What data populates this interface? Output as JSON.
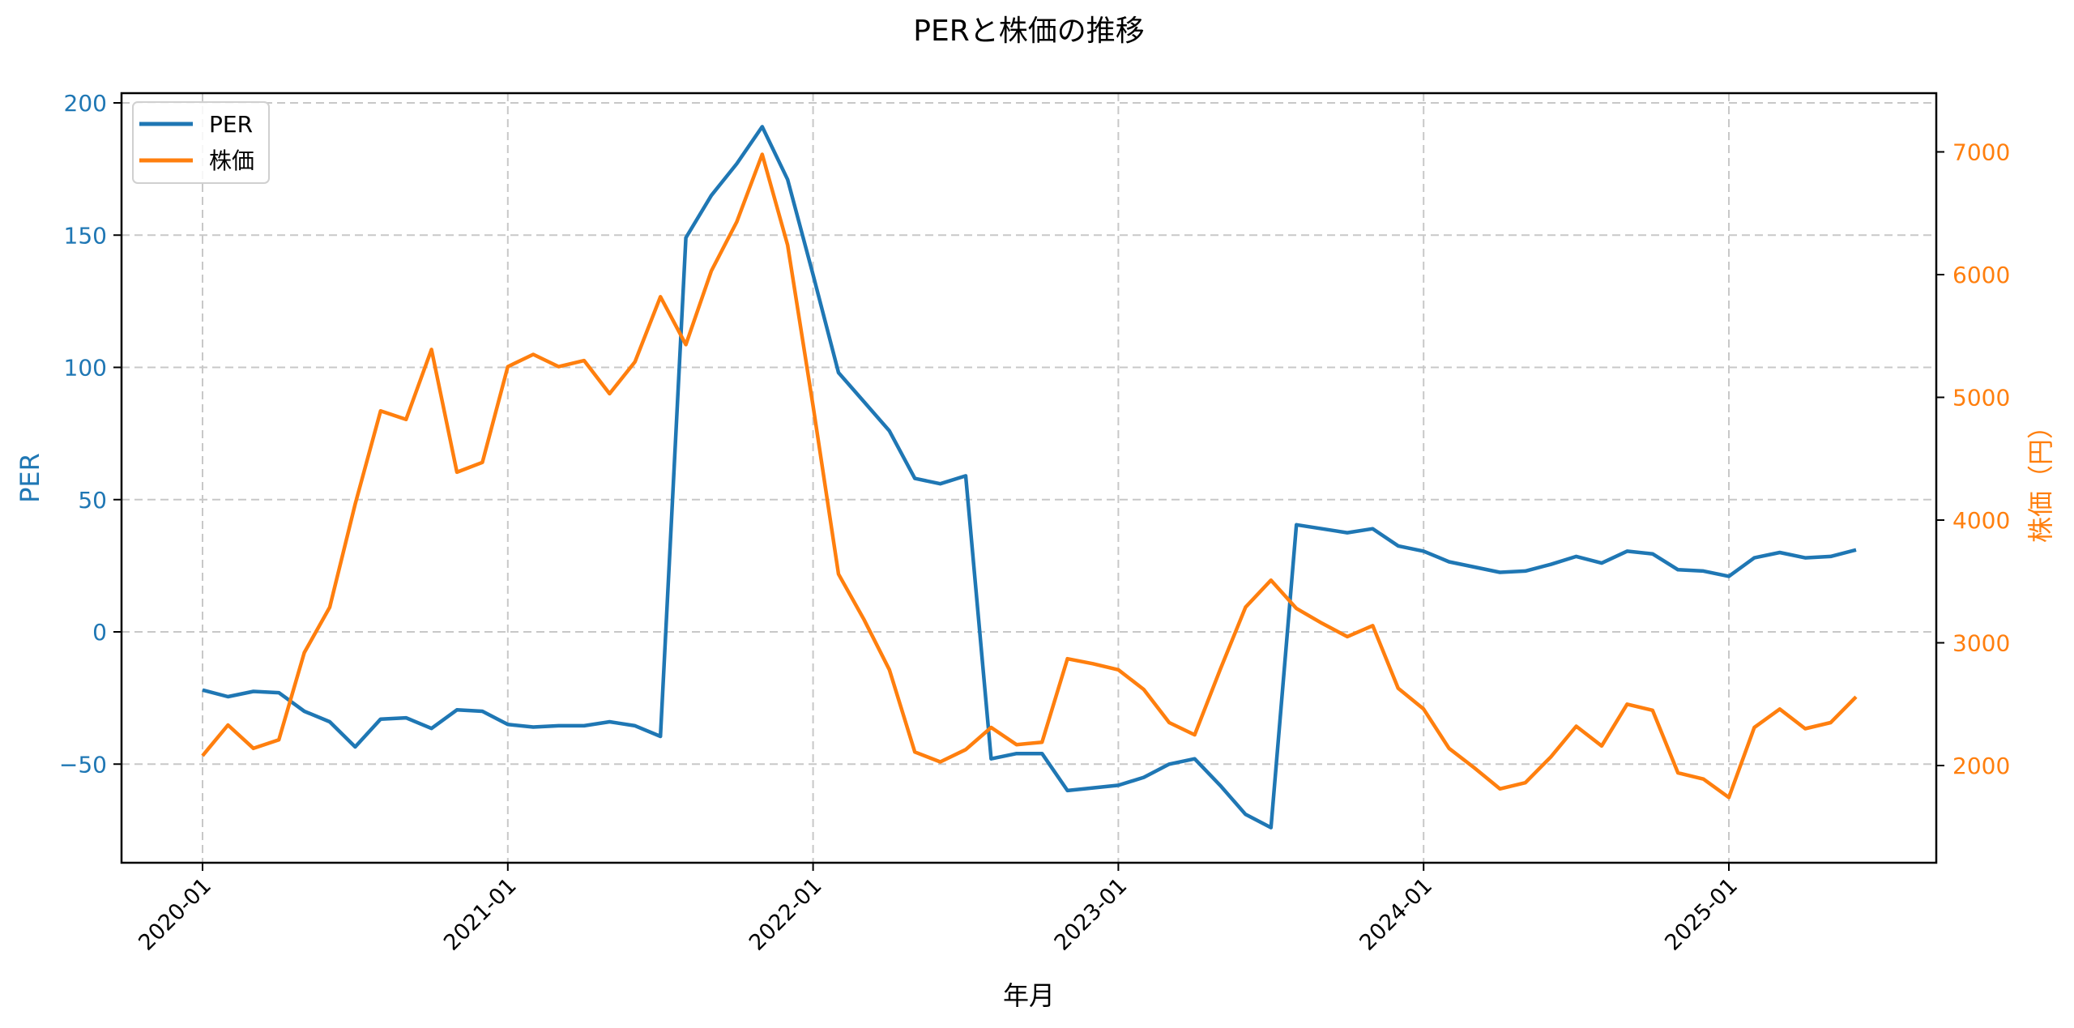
{
  "chart_data": {
    "type": "line",
    "title": "PERと株価の推移",
    "xlabel": "年月",
    "ylabel_left": "PER",
    "ylabel_right": "株価（円）",
    "x_ticks": [
      "2020-01",
      "2021-01",
      "2022-01",
      "2023-01",
      "2024-01",
      "2025-01"
    ],
    "y_left_ticks": [
      -50,
      0,
      50,
      100,
      150,
      200
    ],
    "y_right_ticks": [
      2000,
      3000,
      4000,
      5000,
      6000,
      7000
    ],
    "ylim_left": [
      -88,
      204
    ],
    "ylim_right": [
      1250,
      7460
    ],
    "grid": true,
    "legend_position": "upper left",
    "x": [
      "2020-01",
      "2020-02",
      "2020-03",
      "2020-04",
      "2020-05",
      "2020-06",
      "2020-07",
      "2020-08",
      "2020-09",
      "2020-10",
      "2020-11",
      "2020-12",
      "2021-01",
      "2021-02",
      "2021-03",
      "2021-04",
      "2021-05",
      "2021-06",
      "2021-07",
      "2021-08",
      "2021-09",
      "2021-10",
      "2021-11",
      "2021-12",
      "2022-01",
      "2022-02",
      "2022-03",
      "2022-04",
      "2022-05",
      "2022-06",
      "2022-07",
      "2022-08",
      "2022-09",
      "2022-10",
      "2022-11",
      "2022-12",
      "2023-01",
      "2023-02",
      "2023-03",
      "2023-04",
      "2023-05",
      "2023-06",
      "2023-07",
      "2023-08",
      "2023-09",
      "2023-10",
      "2023-11",
      "2023-12",
      "2024-01",
      "2024-02",
      "2024-03",
      "2024-04",
      "2024-05",
      "2024-06",
      "2024-07",
      "2024-08",
      "2024-09",
      "2024-10",
      "2024-11",
      "2024-12",
      "2025-01",
      "2025-02",
      "2025-03",
      "2025-04",
      "2025-05",
      "2025-06"
    ],
    "series": [
      {
        "name": "PER",
        "axis": "left",
        "color": "#1f77b4",
        "values": [
          -22,
          -24.5,
          -22.5,
          -23,
          -30,
          -34,
          -43.5,
          -33,
          -32.5,
          -36.5,
          -29.5,
          -30,
          -35,
          -36,
          -35.5,
          -35.5,
          -34,
          -35.5,
          -39.5,
          149,
          165,
          177,
          191,
          171,
          135,
          98,
          87,
          76,
          58,
          56,
          59,
          -48,
          -46,
          -46,
          -60,
          -59,
          -58,
          -55,
          -50,
          -48,
          -58,
          -69,
          -74,
          40.5,
          39,
          37.5,
          39,
          32.5,
          30.5,
          26.5,
          24.5,
          22.5,
          23,
          25.5,
          28.5,
          26,
          30.5,
          29.5,
          23.5,
          23,
          21,
          28,
          30,
          28,
          28.5,
          31
        ]
      },
      {
        "name": "株価",
        "axis": "right",
        "color": "#ff7f0e",
        "values": [
          2080,
          2330,
          2140,
          2210,
          2920,
          3290,
          4130,
          4890,
          4820,
          5390,
          4390,
          4470,
          5250,
          5350,
          5250,
          5300,
          5030,
          5290,
          5820,
          5430,
          6030,
          6430,
          6980,
          6240,
          4930,
          3560,
          3190,
          2780,
          2110,
          2030,
          2130,
          2310,
          2170,
          2190,
          2870,
          2830,
          2780,
          2620,
          2350,
          2250,
          2780,
          3290,
          3510,
          3280,
          3160,
          3050,
          3140,
          2630,
          2460,
          2140,
          1980,
          1810,
          1860,
          2070,
          2320,
          2160,
          2500,
          2450,
          1940,
          1890,
          1740,
          2310,
          2460,
          2300,
          2350,
          2560
        ]
      }
    ]
  },
  "legend": {
    "items": [
      {
        "label": "PER",
        "color": "#1f77b4"
      },
      {
        "label": "株価",
        "color": "#ff7f0e"
      }
    ]
  },
  "colors": {
    "per": "#1f77b4",
    "price": "#ff7f0e",
    "grid": "#c8c8c8",
    "axis": "#000000"
  }
}
